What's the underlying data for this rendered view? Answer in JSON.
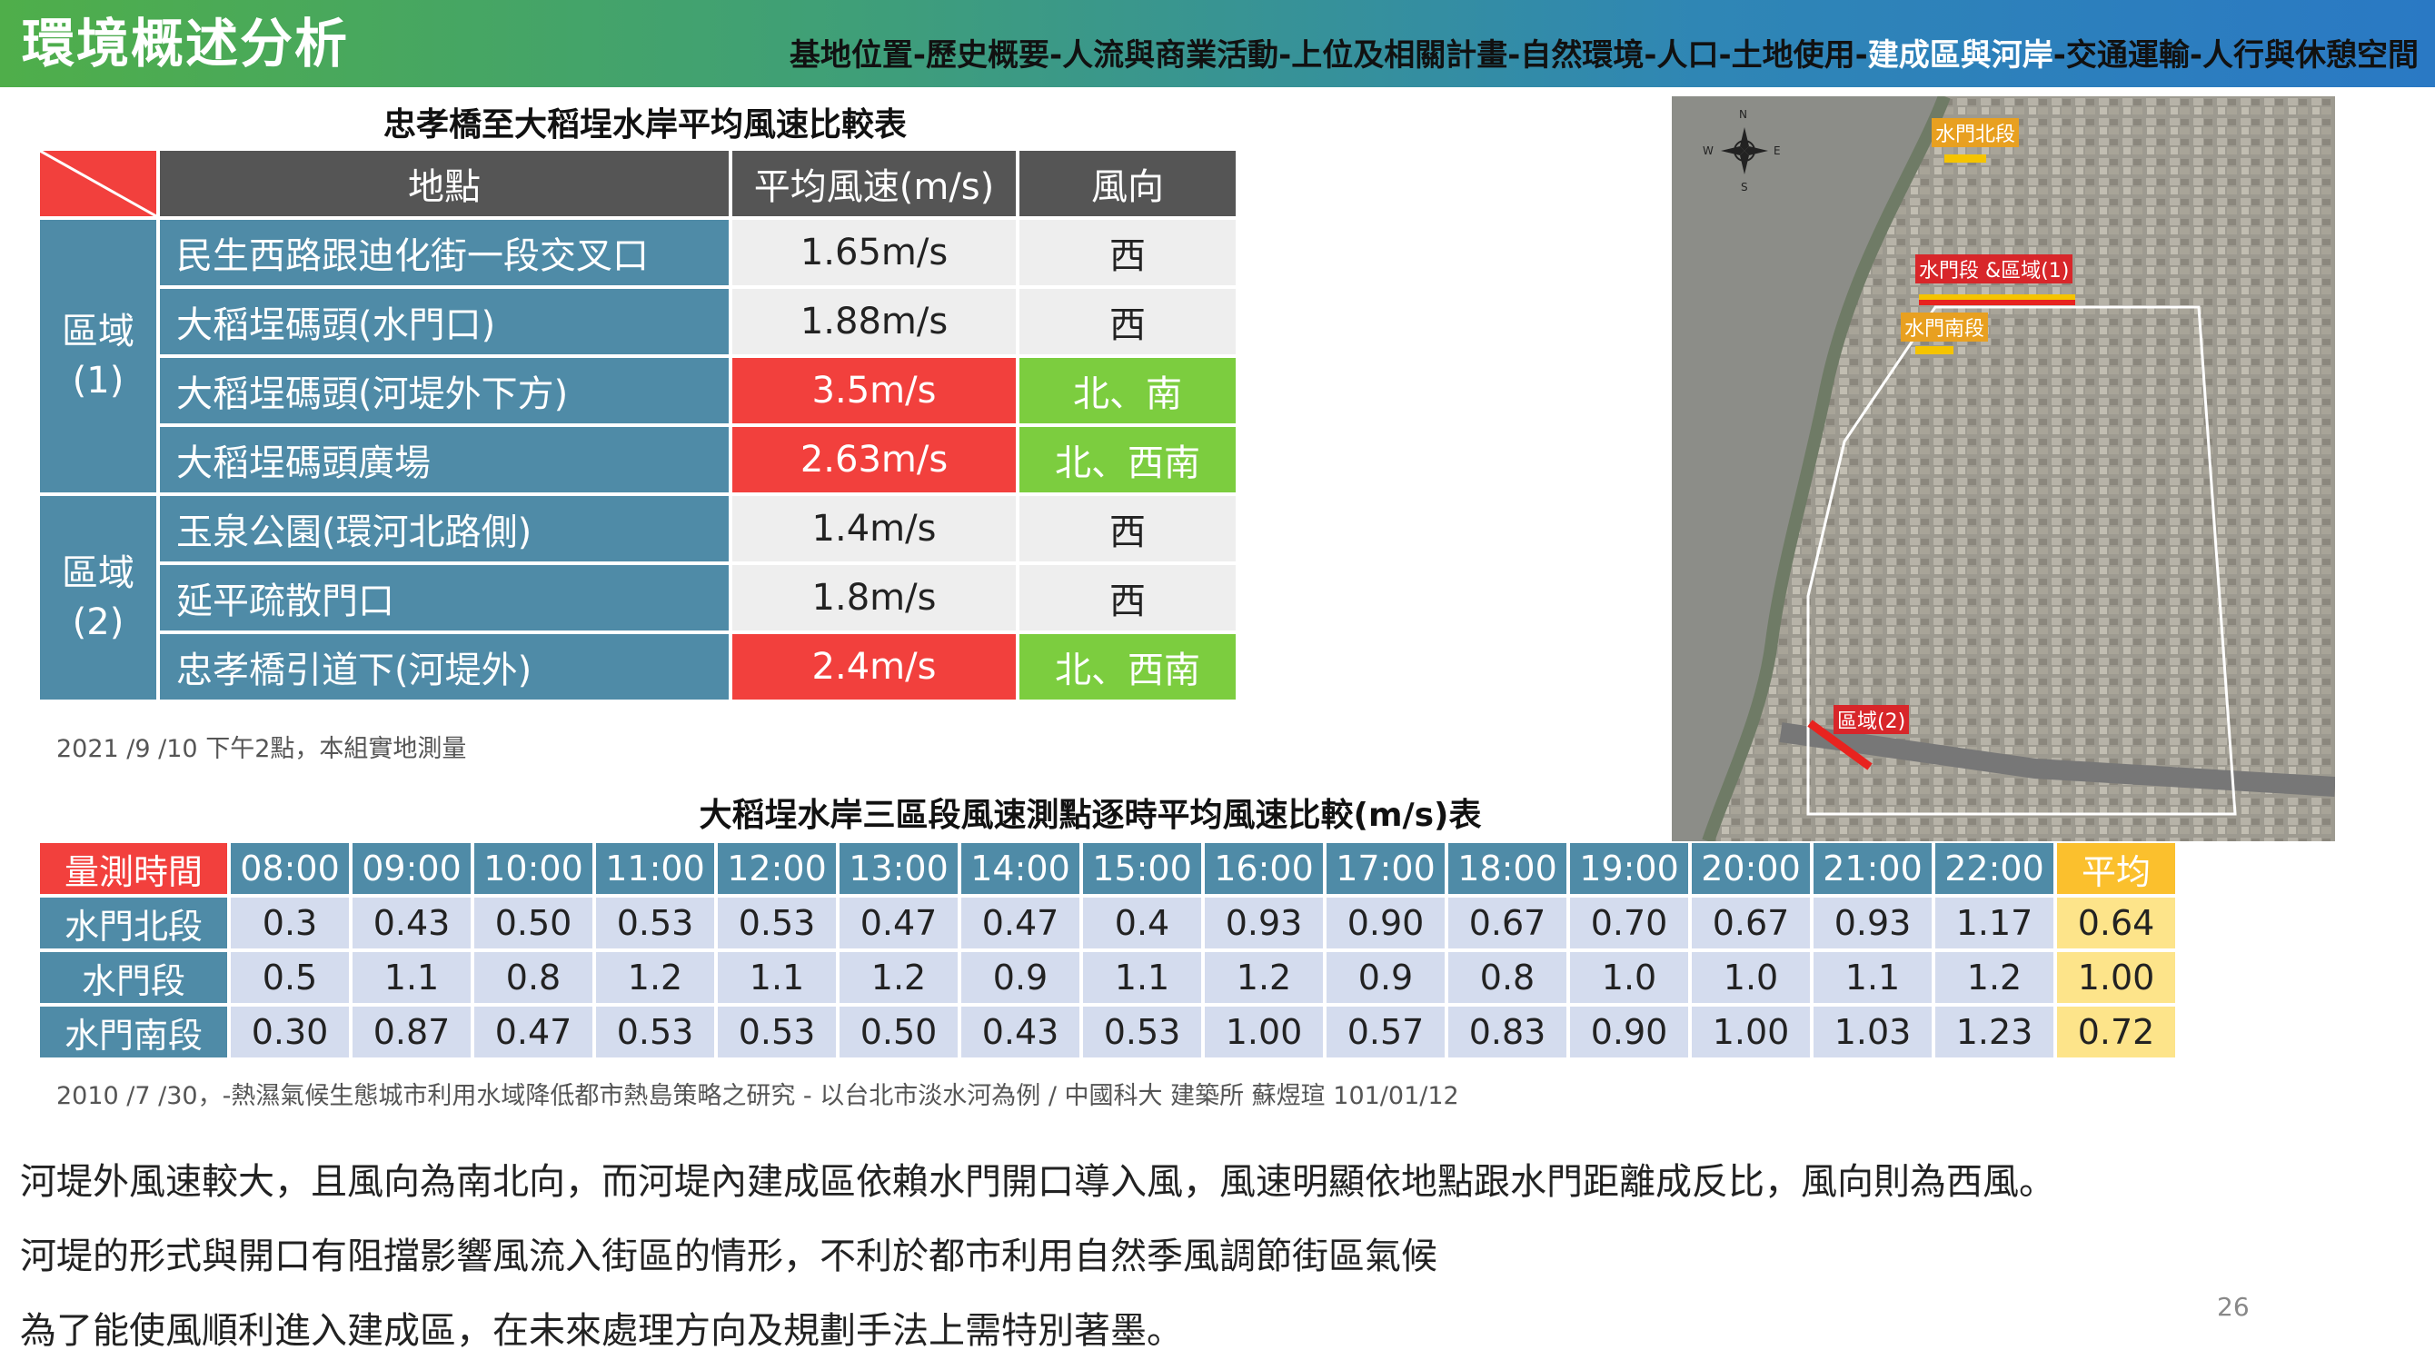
{
  "header": {
    "title": "環境概述分析",
    "nav": [
      {
        "label": "基地位置",
        "active": false
      },
      {
        "label": "-",
        "active": false
      },
      {
        "label": "歷史概要",
        "active": false
      },
      {
        "label": "-",
        "active": false
      },
      {
        "label": "人流與商業活動",
        "active": false
      },
      {
        "label": "-",
        "active": false
      },
      {
        "label": "上位及相關計畫",
        "active": false
      },
      {
        "label": "-",
        "active": false
      },
      {
        "label": "自然環境",
        "active": false
      },
      {
        "label": "-",
        "active": false
      },
      {
        "label": "人口",
        "active": false
      },
      {
        "label": "-",
        "active": false
      },
      {
        "label": "土地使用",
        "active": false
      },
      {
        "label": "-",
        "active": false
      },
      {
        "label": "建成區與河岸",
        "active": true
      },
      {
        "label": "-",
        "active": false
      },
      {
        "label": "交通運輸",
        "active": false
      },
      {
        "label": "-",
        "active": false
      },
      {
        "label": "人行與休憩空間",
        "active": false
      }
    ]
  },
  "table1": {
    "caption": "忠孝橋至大稻埕水岸平均風速比較表",
    "headers": {
      "location": "地點",
      "speed": "平均風速(m/s)",
      "direction": "風向"
    },
    "regions": [
      {
        "name": "區域",
        "number": "(1)",
        "rows": [
          {
            "location": "民生西路跟迪化街一段交叉口",
            "speed": "1.65m/s",
            "direction": "西",
            "highlight": false
          },
          {
            "location": "大稻埕碼頭(水門口)",
            "speed": "1.88m/s",
            "direction": "西",
            "highlight": false
          },
          {
            "location": "大稻埕碼頭(河堤外下方)",
            "speed": "3.5m/s",
            "direction": "北、南",
            "highlight": true
          },
          {
            "location": "大稻埕碼頭廣場",
            "speed": "2.63m/s",
            "direction": "北、西南",
            "highlight": true
          }
        ]
      },
      {
        "name": "區域",
        "number": "(2)",
        "rows": [
          {
            "location": "玉泉公園(環河北路側)",
            "speed": "1.4m/s",
            "direction": "西",
            "highlight": false
          },
          {
            "location": "延平疏散門口",
            "speed": "1.8m/s",
            "direction": "西",
            "highlight": false
          },
          {
            "location": "忠孝橋引道下(河堤外)",
            "speed": "2.4m/s",
            "direction": "北、西南",
            "highlight": true
          }
        ]
      }
    ],
    "source": "2021 /9 /10 下午2點，本組實地測量"
  },
  "table2": {
    "caption": "大稻埕水岸三區段風速測點逐時平均風速比較(m/s)表",
    "corner": "量測時間",
    "times": [
      "08:00",
      "09:00",
      "10:00",
      "11:00",
      "12:00",
      "13:00",
      "14:00",
      "15:00",
      "16:00",
      "17:00",
      "18:00",
      "19:00",
      "20:00",
      "21:00",
      "22:00"
    ],
    "avg_label": "平均",
    "rows": [
      {
        "label": "水門北段",
        "values": [
          "0.3",
          "0.43",
          "0.50",
          "0.53",
          "0.53",
          "0.47",
          "0.47",
          "0.4",
          "0.93",
          "0.90",
          "0.67",
          "0.70",
          "0.67",
          "0.93",
          "1.17"
        ],
        "avg": "0.64"
      },
      {
        "label": "水門段",
        "values": [
          "0.5",
          "1.1",
          "0.8",
          "1.2",
          "1.1",
          "1.2",
          "0.9",
          "1.1",
          "1.2",
          "0.9",
          "0.8",
          "1.0",
          "1.0",
          "1.1",
          "1.2"
        ],
        "avg": "1.00"
      },
      {
        "label": "水門南段",
        "values": [
          "0.30",
          "0.87",
          "0.47",
          "0.53",
          "0.53",
          "0.50",
          "0.43",
          "0.53",
          "1.00",
          "0.57",
          "0.83",
          "0.90",
          "1.00",
          "1.03",
          "1.23"
        ],
        "avg": "0.72"
      }
    ],
    "source": "2010 /7 /30，-熱濕氣候生態城市利用水域降低都市熱島策略之研究 - 以台北市淡水河為例 / 中國科大 建築所 蘇煜瑄 101/01/12"
  },
  "map": {
    "labels": {
      "north_section": "水門北段",
      "gate_section": "水門段 &區域(1)",
      "south_section": "水門南段",
      "region2": "區域(2)"
    },
    "compass": {
      "n": "N",
      "s": "S",
      "e": "E",
      "w": "W"
    },
    "colors": {
      "river": "#8c8d88",
      "urban": "#a3a097",
      "boundary": "#ffffff",
      "marker_red": "#e8231f",
      "marker_yellow": "#f5c400"
    }
  },
  "body": {
    "lines": [
      "河堤外風速較大，且風向為南北向，而河堤內建成區依賴水門開口導入風，風速明顯依地點跟水門距離成反比，風向則為西風。",
      "河堤的形式與開口有阻擋影響風流入街區的情形，不利於都市利用自然季風調節街區氣候",
      "為了能使風順利進入建成區，在未來處理方向及規劃手法上需特別著墨。"
    ],
    "page_number": "26"
  },
  "colors": {
    "header_green": "#4fae4a",
    "header_blue": "#2a79c4",
    "table_blue": "#4f8ba7",
    "table_gray_header": "#555555",
    "highlight_red": "#f2403d",
    "highlight_green": "#7ccd3f",
    "avg_yellow": "#fbc02d"
  }
}
